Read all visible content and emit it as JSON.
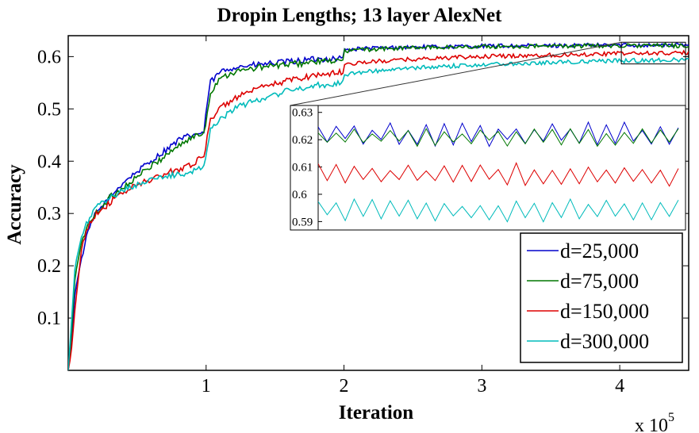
{
  "chart_data": {
    "type": "line",
    "title": "Dropin Lengths; 13 layer AlexNet",
    "xlabel": "Iteration",
    "ylabel": "Accuracy",
    "x_multiplier": "x 10",
    "x_multiplier_exp": "5",
    "xlim": [
      0,
      450000
    ],
    "ylim": [
      0,
      0.64
    ],
    "x_ticks": [
      100000,
      200000,
      300000,
      400000
    ],
    "x_tick_labels": [
      "1",
      "2",
      "3",
      "4"
    ],
    "y_ticks": [
      0.1,
      0.2,
      0.3,
      0.4,
      0.5,
      0.6
    ],
    "y_tick_labels": [
      "0.1",
      "0.2",
      "0.3",
      "0.4",
      "0.5",
      "0.6"
    ],
    "legend_position": "bottom-right",
    "series": [
      {
        "name": "d=25,000",
        "color": "#0000cc",
        "x": [
          0,
          2000,
          5000,
          10000,
          15000,
          20000,
          30000,
          40000,
          50000,
          60000,
          70000,
          80000,
          90000,
          99000,
          100000,
          103000,
          110000,
          120000,
          140000,
          160000,
          180000,
          199000,
          200000,
          205000,
          220000,
          250000,
          300000,
          350000,
          400000,
          450000
        ],
        "values": [
          0.0,
          0.05,
          0.15,
          0.22,
          0.27,
          0.3,
          0.33,
          0.36,
          0.38,
          0.4,
          0.42,
          0.44,
          0.45,
          0.455,
          0.5,
          0.55,
          0.57,
          0.58,
          0.585,
          0.59,
          0.595,
          0.597,
          0.612,
          0.614,
          0.616,
          0.618,
          0.62,
          0.621,
          0.622,
          0.622
        ]
      },
      {
        "name": "d=75,000",
        "color": "#007700",
        "x": [
          0,
          2000,
          5000,
          10000,
          15000,
          20000,
          30000,
          40000,
          50000,
          60000,
          70000,
          80000,
          90000,
          99000,
          100000,
          103000,
          110000,
          120000,
          140000,
          160000,
          180000,
          199000,
          200000,
          205000,
          220000,
          250000,
          300000,
          350000,
          400000,
          450000
        ],
        "values": [
          0.0,
          0.06,
          0.18,
          0.25,
          0.28,
          0.3,
          0.33,
          0.35,
          0.37,
          0.39,
          0.41,
          0.43,
          0.445,
          0.455,
          0.48,
          0.53,
          0.56,
          0.57,
          0.58,
          0.585,
          0.59,
          0.592,
          0.61,
          0.612,
          0.614,
          0.617,
          0.619,
          0.62,
          0.621,
          0.621
        ]
      },
      {
        "name": "d=150,000",
        "color": "#dd0000",
        "x": [
          0,
          2000,
          5000,
          10000,
          15000,
          20000,
          30000,
          40000,
          50000,
          60000,
          70000,
          80000,
          90000,
          99000,
          100000,
          103000,
          110000,
          120000,
          140000,
          160000,
          180000,
          199000,
          200000,
          205000,
          220000,
          250000,
          300000,
          350000,
          400000,
          450000
        ],
        "values": [
          0.0,
          0.03,
          0.12,
          0.24,
          0.28,
          0.3,
          0.32,
          0.34,
          0.355,
          0.365,
          0.375,
          0.385,
          0.395,
          0.41,
          0.44,
          0.48,
          0.5,
          0.52,
          0.54,
          0.555,
          0.565,
          0.57,
          0.585,
          0.587,
          0.59,
          0.595,
          0.6,
          0.603,
          0.606,
          0.607
        ]
      },
      {
        "name": "d=300,000",
        "color": "#00bbbb",
        "x": [
          0,
          2000,
          5000,
          10000,
          15000,
          20000,
          30000,
          40000,
          50000,
          60000,
          70000,
          80000,
          90000,
          99000,
          100000,
          103000,
          110000,
          120000,
          140000,
          160000,
          180000,
          199000,
          200000,
          205000,
          220000,
          250000,
          300000,
          350000,
          400000,
          450000
        ],
        "values": [
          0.0,
          0.08,
          0.2,
          0.26,
          0.29,
          0.31,
          0.33,
          0.345,
          0.355,
          0.365,
          0.37,
          0.375,
          0.38,
          0.39,
          0.42,
          0.46,
          0.48,
          0.5,
          0.52,
          0.535,
          0.545,
          0.55,
          0.565,
          0.568,
          0.572,
          0.578,
          0.585,
          0.589,
          0.592,
          0.594
        ]
      }
    ],
    "inset": {
      "xlim": [
        400000,
        450000
      ],
      "ylim": [
        0.5875,
        0.6305
      ],
      "y_ticks": [
        0.59,
        0.6,
        0.61,
        0.62,
        0.63
      ],
      "y_tick_labels": [
        "0.59",
        "0.6",
        "0.61",
        "0.62",
        "0.63"
      ]
    }
  }
}
